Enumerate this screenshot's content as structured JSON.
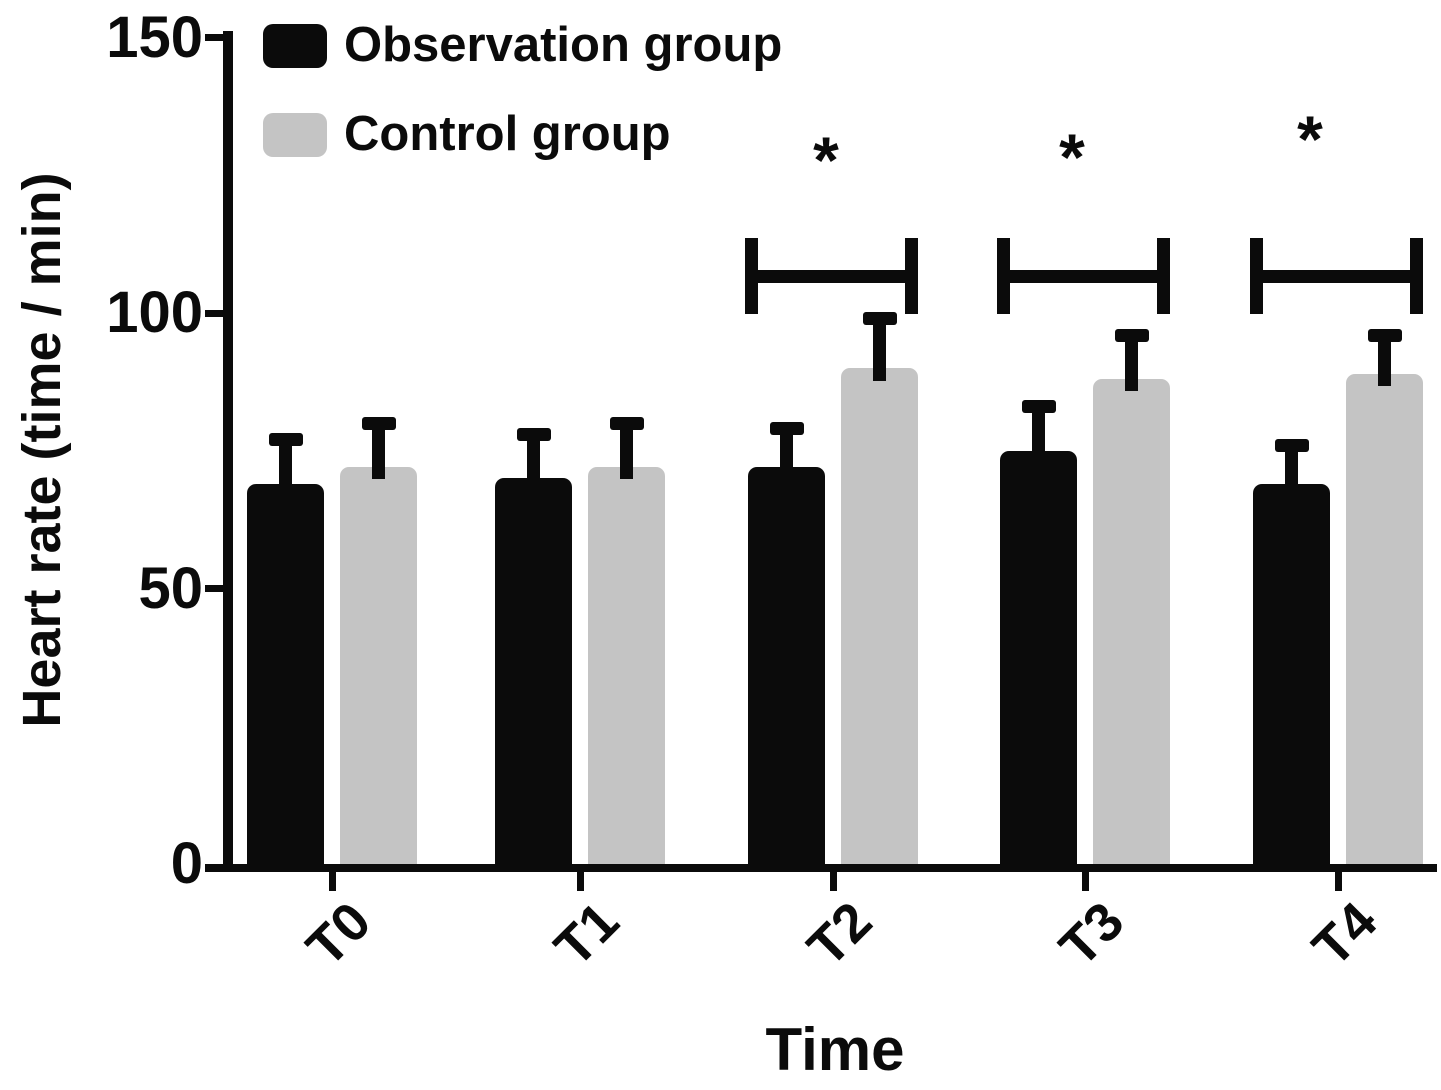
{
  "figure": {
    "background": "#ffffff"
  },
  "legend": {
    "items": [
      {
        "label": "Observation group",
        "color": "#0b0b0b"
      },
      {
        "label": "Control group",
        "color": "#c4c4c4"
      }
    ]
  },
  "chart_data": {
    "type": "bar",
    "title": "",
    "xlabel": "Time",
    "ylabel": "Heart rate (time / min)",
    "categories": [
      "T0",
      "T1",
      "T2",
      "T3",
      "T4"
    ],
    "series": [
      {
        "name": "Observation group",
        "color": "#0b0b0b",
        "values": [
          69,
          70,
          72,
          75,
          69
        ],
        "errors_plus": [
          8,
          8,
          7,
          8,
          7
        ]
      },
      {
        "name": "Control group",
        "color": "#c4c4c4",
        "values": [
          72,
          72,
          90,
          88,
          89
        ],
        "errors_plus": [
          8,
          8,
          9,
          8,
          7
        ]
      }
    ],
    "ylim": [
      0,
      150
    ],
    "yticks": [
      0,
      50,
      100,
      150
    ],
    "grid": false,
    "legend_position": "top-left",
    "significance": [
      {
        "category": "T2",
        "label": "*"
      },
      {
        "category": "T3",
        "label": "*"
      },
      {
        "category": "T4",
        "label": "*"
      }
    ]
  }
}
